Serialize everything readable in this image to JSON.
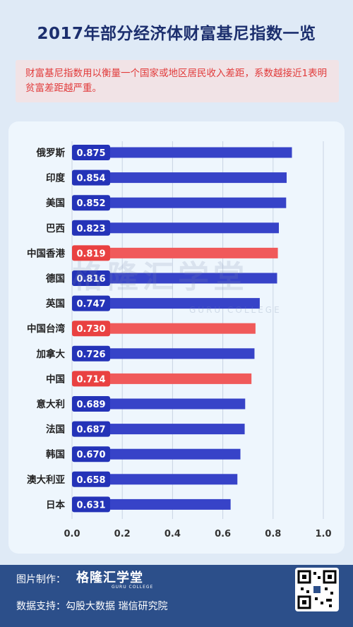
{
  "title": "2017年部分经济体财富基尼指数一览",
  "subtitle": "财富基尼指数用以衡量一个国家或地区居民收入差距，系数越接近1表明贫富差距越严重。",
  "watermark": {
    "main": "格隆汇学堂",
    "sub": "GURU COLLEGE"
  },
  "footer": {
    "made_by_label": "图片制作：",
    "logo": "格隆汇学堂",
    "logo_sub": "GURU COLLEGE",
    "data_label": "数据支持：勾股大数据 瑞信研究院"
  },
  "colors": {
    "blue": "#3743c8",
    "red": "#f05a5a",
    "blue_tag": "#2433b8",
    "red_tag": "#e94141"
  },
  "chart_data": {
    "type": "bar",
    "orientation": "horizontal",
    "categories": [
      "俄罗斯",
      "印度",
      "美国",
      "巴西",
      "中国香港",
      "德国",
      "英国",
      "中国台湾",
      "加拿大",
      "中国",
      "意大利",
      "法国",
      "韩国",
      "澳大利亚",
      "日本"
    ],
    "values": [
      0.875,
      0.854,
      0.852,
      0.823,
      0.819,
      0.816,
      0.747,
      0.73,
      0.726,
      0.714,
      0.689,
      0.687,
      0.67,
      0.658,
      0.631
    ],
    "value_labels": [
      "0.875",
      "0.854",
      "0.852",
      "0.823",
      "0.819",
      "0.816",
      "0.747",
      "0.730",
      "0.726",
      "0.714",
      "0.689",
      "0.687",
      "0.670",
      "0.658",
      "0.631"
    ],
    "highlight": [
      false,
      false,
      false,
      false,
      true,
      false,
      false,
      true,
      false,
      true,
      false,
      false,
      false,
      false,
      false
    ],
    "xlim": [
      0,
      1.0
    ],
    "xticks": [
      "0.0",
      "0.2",
      "0.4",
      "0.6",
      "0.8",
      "1.0"
    ],
    "grid": true
  }
}
